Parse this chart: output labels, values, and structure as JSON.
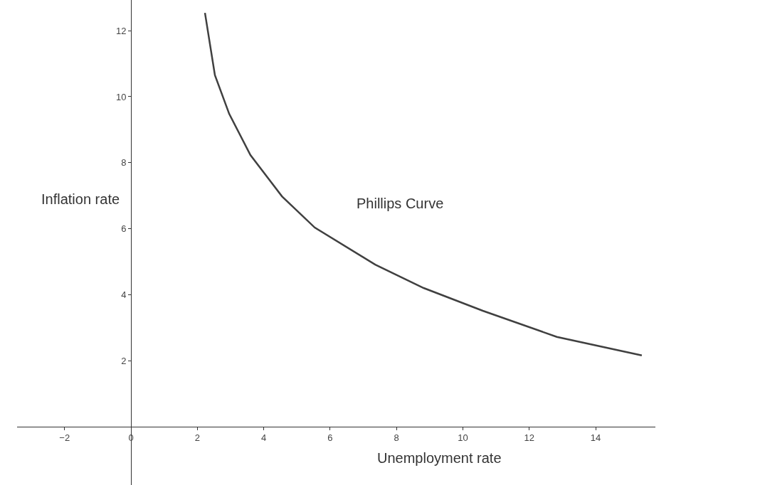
{
  "chart_data": {
    "type": "line",
    "xlabel": "Unemployment rate",
    "ylabel": "Inflation rate",
    "x": [
      2.23,
      2.53,
      2.96,
      3.6,
      4.55,
      5.54,
      7.36,
      8.82,
      10.6,
      12.83,
      15.39
    ],
    "series": [
      {
        "color": "#404040",
        "values": [
          12.54,
          10.65,
          9.48,
          8.23,
          6.98,
          6.03,
          4.91,
          4.2,
          3.51,
          2.72,
          2.16
        ]
      }
    ],
    "annotations": [
      "Phillips Curve"
    ],
    "xlim": [
      -3.43,
      15.8
    ],
    "ylim": [
      -1.77,
      12.93
    ],
    "xticks": [
      {
        "value": -2,
        "label": "−2"
      },
      0,
      2,
      4,
      6,
      8,
      10,
      12,
      14
    ],
    "yticks": [
      2,
      4,
      6,
      8,
      10,
      12
    ],
    "marker": "none",
    "line_style": "solid"
  }
}
